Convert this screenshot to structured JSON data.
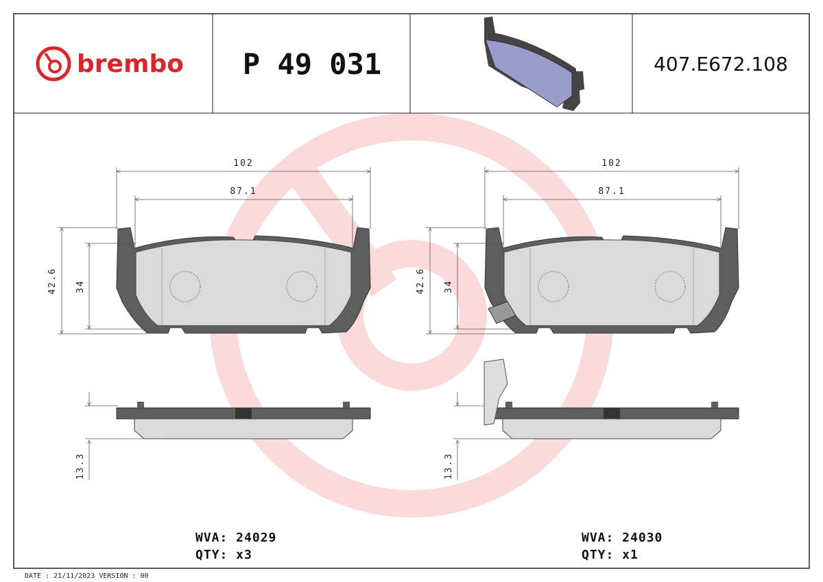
{
  "header": {
    "brand": "brembo",
    "part_number": "P 49 031",
    "code": "407.E672.108"
  },
  "drawings": [
    {
      "width_total": "102",
      "width_inner": "87.1",
      "height_total": "42.6",
      "height_inner": "34",
      "thickness": "13.3",
      "wva": "WVA: 24029",
      "qty": "QTY: x3"
    },
    {
      "width_total": "102",
      "width_inner": "87.1",
      "height_total": "42.6",
      "height_inner": "34",
      "thickness": "13.3",
      "wva": "WVA: 24030",
      "qty": "QTY: x1"
    }
  ],
  "footer": {
    "date": "DATE : 21/11/2023 VERSION : 00"
  }
}
